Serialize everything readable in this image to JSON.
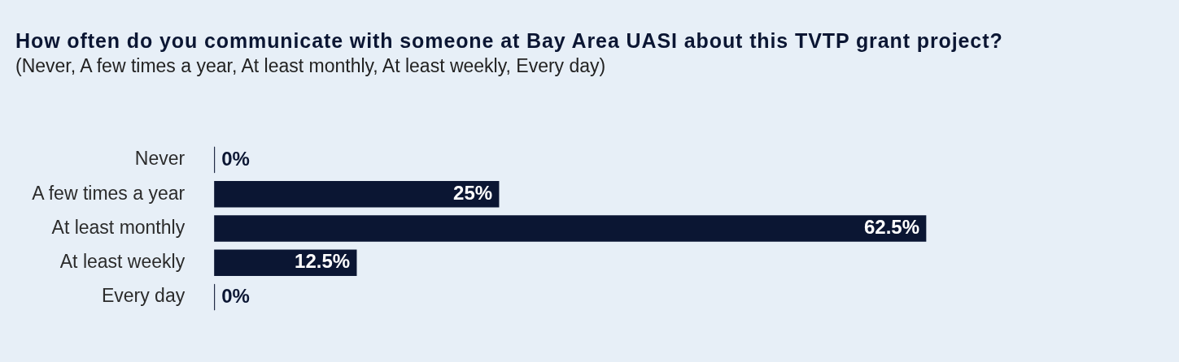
{
  "chart_data": {
    "type": "bar",
    "orientation": "horizontal",
    "title": "How often do you communicate with someone at Bay Area UASI about this TVTP grant project?",
    "subtitle": "(Never, A few times a year, At least monthly, At least weekly, Every day)",
    "categories": [
      "Never",
      "A few times a year",
      "At least monthly",
      "At least weekly",
      "Every day"
    ],
    "values": [
      0,
      25,
      62.5,
      12.5,
      0
    ],
    "value_labels": [
      "0%",
      "25%",
      "62.5%",
      "12.5%",
      "0%"
    ],
    "color": "#0b1633",
    "legend": false
  }
}
